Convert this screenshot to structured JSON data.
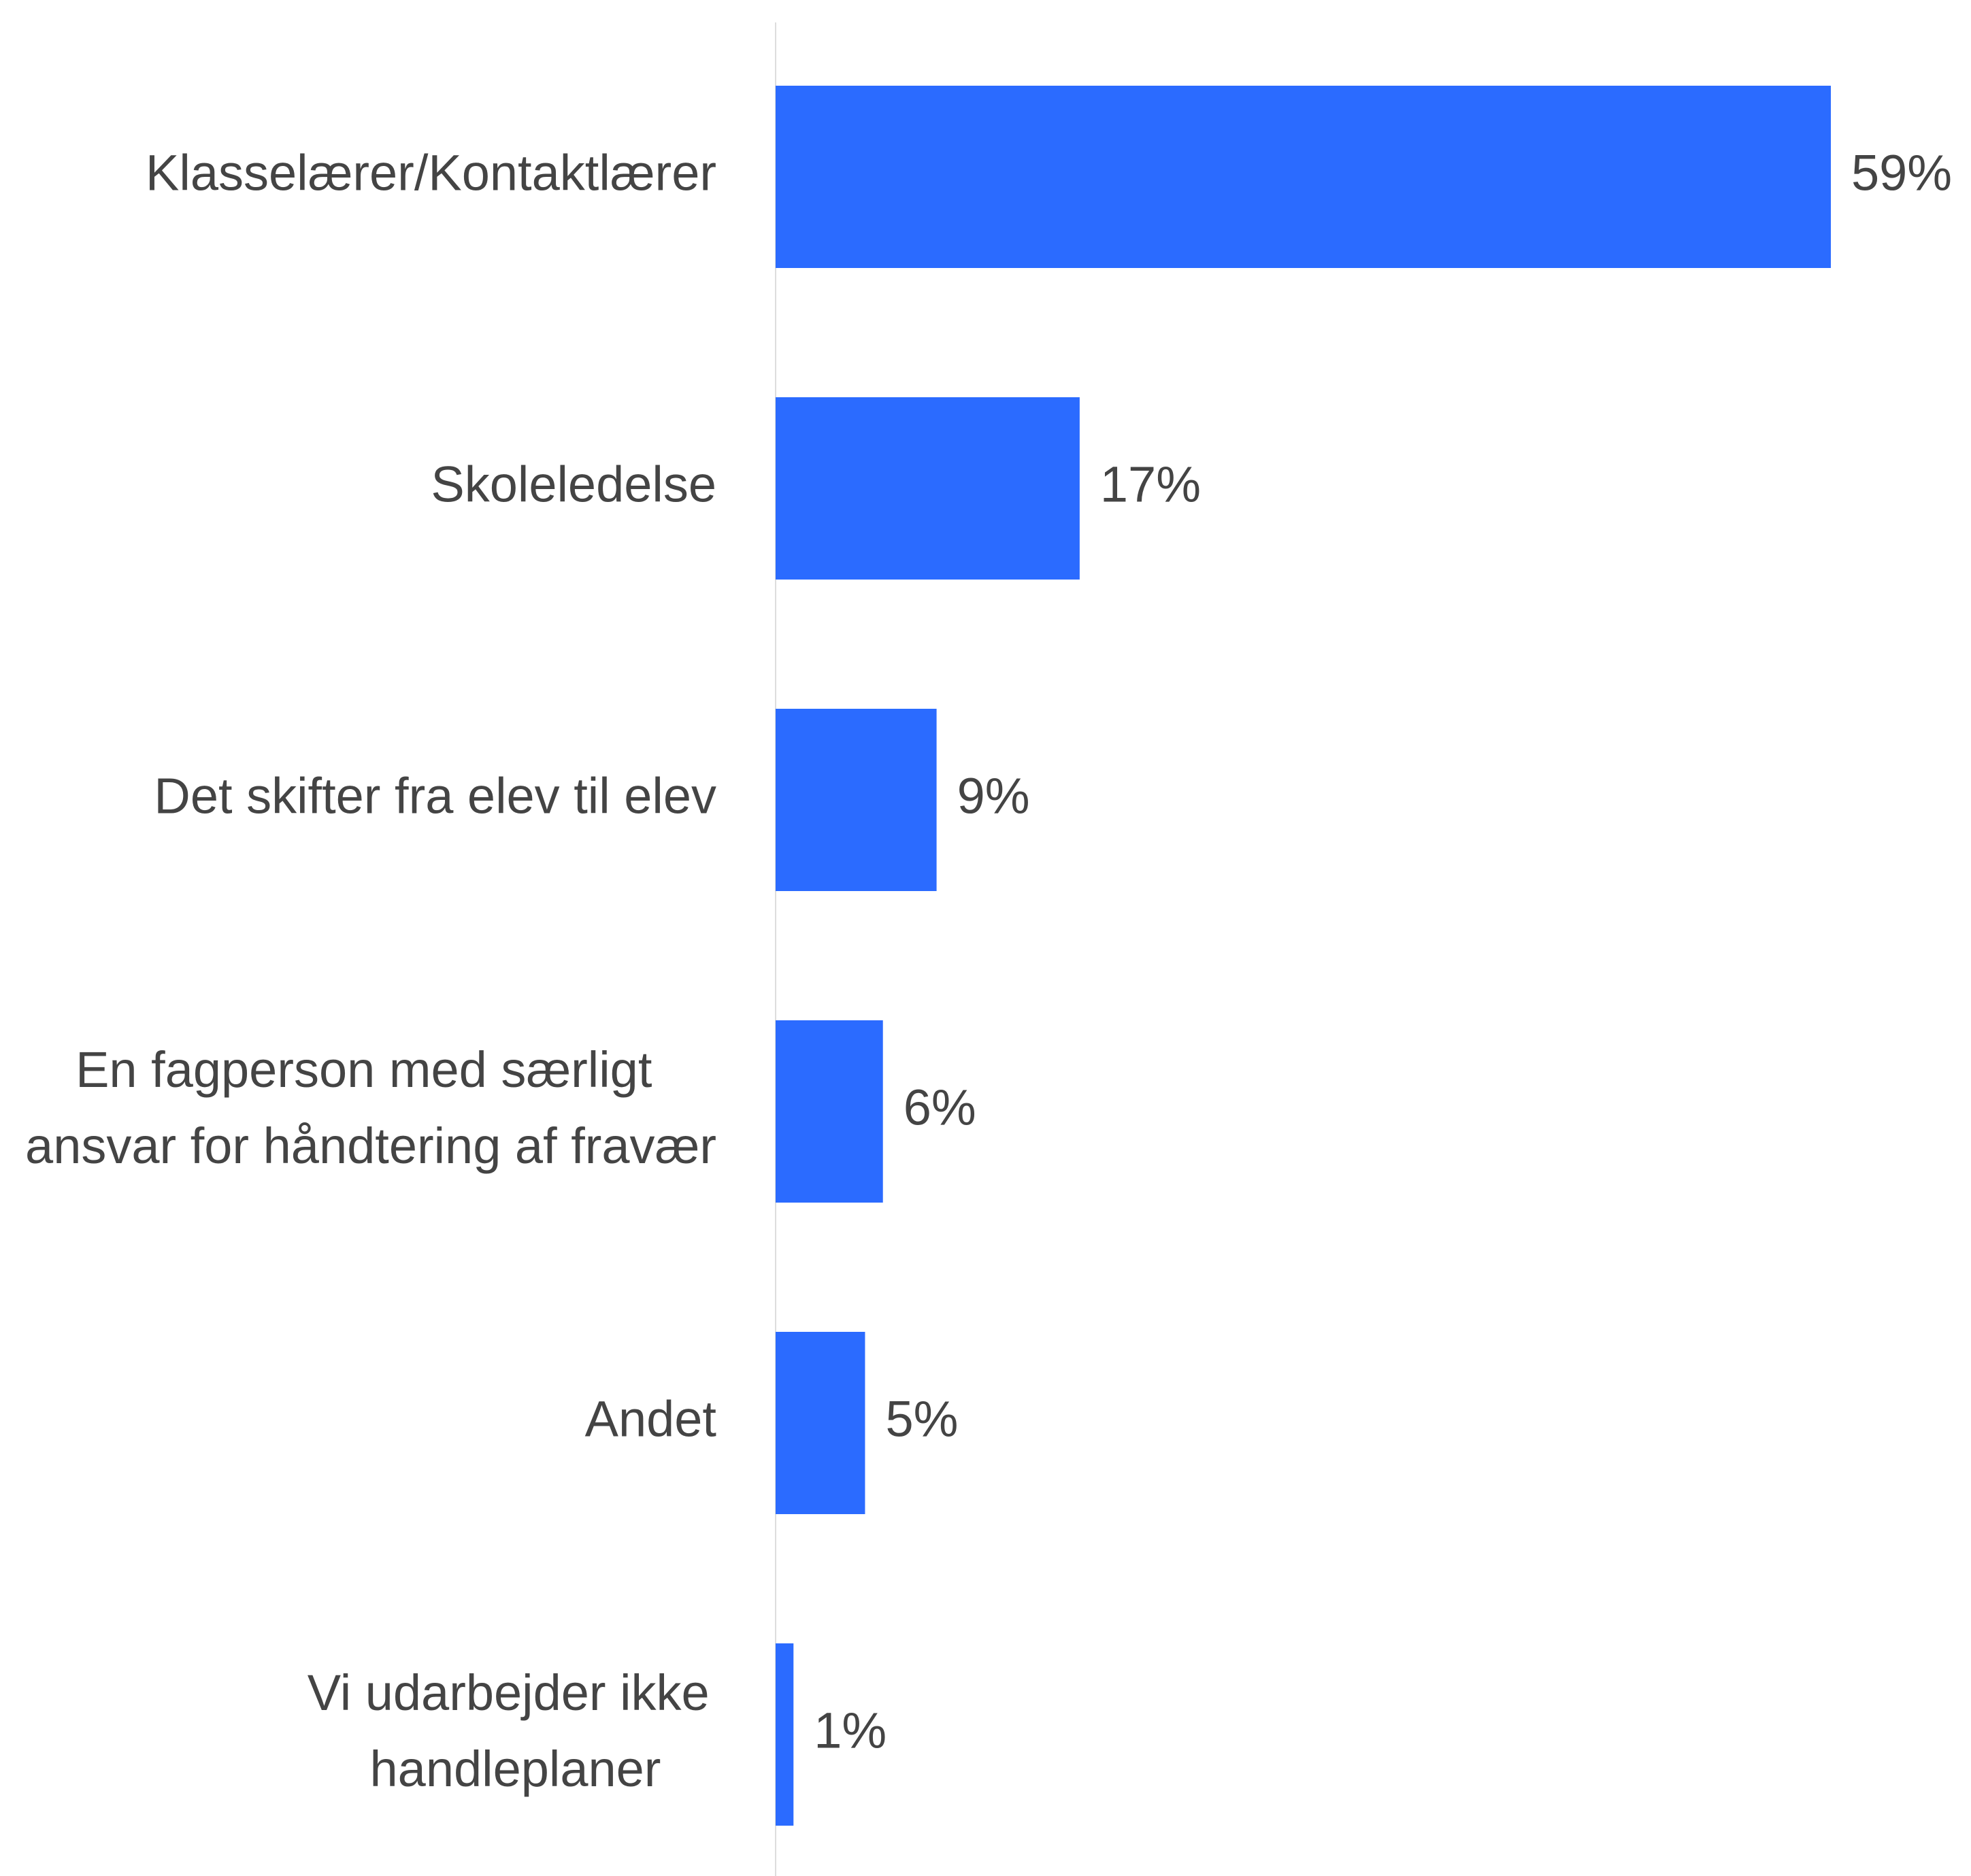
{
  "chart_data": {
    "type": "bar",
    "orientation": "horizontal",
    "categories": [
      "Klasselærer/Kontaktlærer",
      "Skoleledelse",
      "Det skifter fra elev til elev",
      "En fagperson med særligt ansvar for håndtering af fravær",
      "Andet",
      "Vi udarbejder ikke handleplaner"
    ],
    "values": [
      59,
      17,
      9,
      6,
      5,
      1
    ],
    "value_labels": [
      "59%",
      "17%",
      "9%",
      "6%",
      "5%",
      "1%"
    ],
    "color": "#2b6bff"
  }
}
